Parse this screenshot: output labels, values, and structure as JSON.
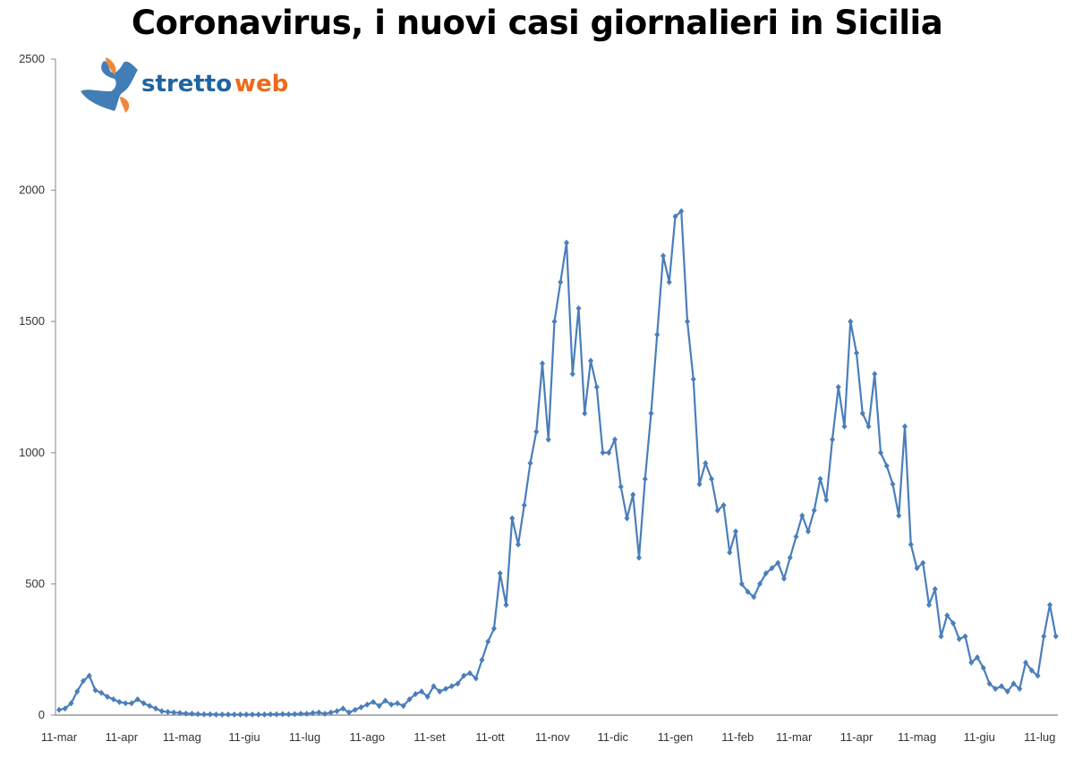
{
  "chart_data": {
    "type": "line",
    "title": "Coronavirus, i nuovi casi giornalieri in Sicilia",
    "xlabel": "",
    "ylabel": "",
    "ylim": [
      0,
      2500
    ],
    "yticks": [
      0,
      500,
      1000,
      1500,
      2000,
      2500
    ],
    "x_start": "11-mar-2020",
    "x_step_days": 3,
    "xticks": [
      {
        "label": "11-mar",
        "day": 0
      },
      {
        "label": "11-apr",
        "day": 31
      },
      {
        "label": "11-mag",
        "day": 61
      },
      {
        "label": "11-giu",
        "day": 92
      },
      {
        "label": "11-lug",
        "day": 122
      },
      {
        "label": "11-ago",
        "day": 153
      },
      {
        "label": "11-set",
        "day": 184
      },
      {
        "label": "11-ott",
        "day": 214
      },
      {
        "label": "11-nov",
        "day": 245
      },
      {
        "label": "11-dic",
        "day": 275
      },
      {
        "label": "11-gen",
        "day": 306
      },
      {
        "label": "11-feb",
        "day": 337
      },
      {
        "label": "11-mar",
        "day": 365
      },
      {
        "label": "11-apr",
        "day": 396
      },
      {
        "label": "11-mag",
        "day": 426
      },
      {
        "label": "11-giu",
        "day": 457
      },
      {
        "label": "11-lug",
        "day": 487
      }
    ],
    "series": [
      {
        "name": "nuovi casi",
        "color": "#4a7ebb",
        "values": [
          20,
          25,
          45,
          90,
          130,
          150,
          95,
          85,
          70,
          60,
          50,
          45,
          45,
          60,
          45,
          35,
          25,
          15,
          12,
          10,
          8,
          6,
          5,
          4,
          3,
          3,
          2,
          2,
          2,
          2,
          2,
          2,
          2,
          2,
          2,
          3,
          3,
          4,
          3,
          4,
          5,
          5,
          8,
          10,
          5,
          10,
          15,
          25,
          10,
          20,
          30,
          40,
          50,
          35,
          55,
          40,
          45,
          35,
          60,
          80,
          90,
          70,
          110,
          90,
          100,
          110,
          120,
          150,
          160,
          140,
          210,
          280,
          330,
          540,
          420,
          750,
          650,
          800,
          960,
          1080,
          1340,
          1050,
          1500,
          1650,
          1800,
          1300,
          1550,
          1150,
          1350,
          1250,
          1000,
          1000,
          1050,
          870,
          750,
          840,
          600,
          900,
          1150,
          1450,
          1750,
          1650,
          1900,
          1920,
          1500,
          1280,
          880,
          960,
          900,
          780,
          800,
          620,
          700,
          500,
          470,
          450,
          500,
          540,
          560,
          580,
          520,
          600,
          680,
          760,
          700,
          780,
          900,
          820,
          1050,
          1250,
          1100,
          1500,
          1380,
          1150,
          1100,
          1300,
          1000,
          950,
          880,
          760,
          1100,
          650,
          560,
          580,
          420,
          480,
          300,
          380,
          350,
          290,
          300,
          200,
          220,
          180,
          120,
          100,
          110,
          90,
          120,
          100,
          200,
          170,
          150,
          300,
          420,
          300
        ]
      }
    ],
    "grid": false,
    "legend": "none"
  },
  "logo": {
    "text_a": "stretto",
    "text_b": "web"
  }
}
